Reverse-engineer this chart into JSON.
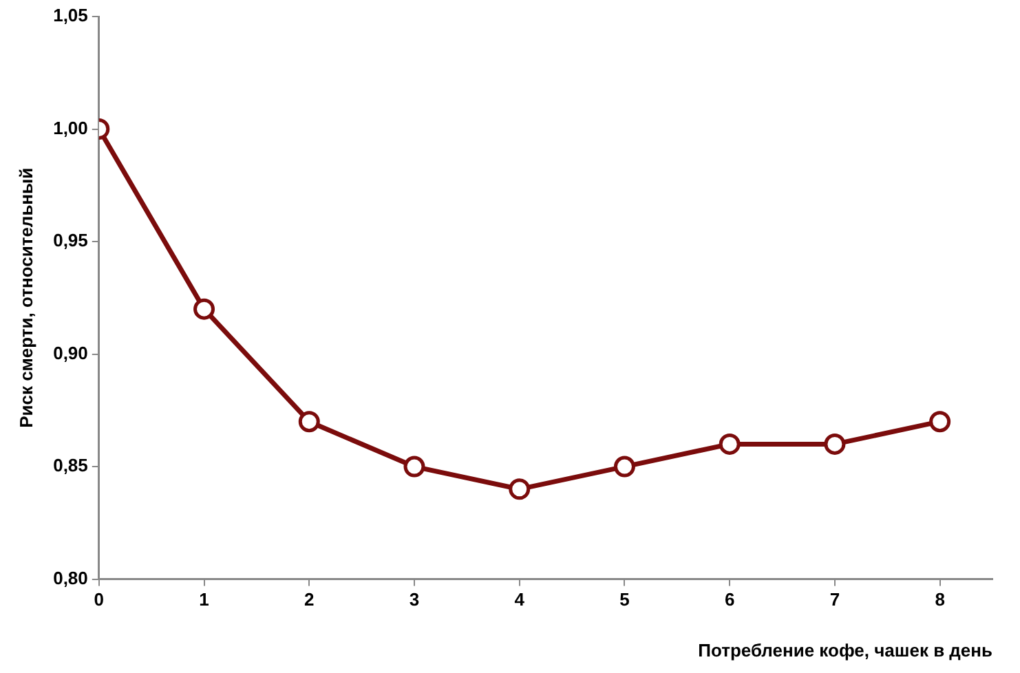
{
  "chart_data": {
    "type": "line",
    "xlabel": "Потребление кофе, чашек в день",
    "ylabel": "Риск смерти, относительный",
    "x": [
      0,
      1,
      2,
      3,
      4,
      5,
      6,
      7,
      8
    ],
    "series": [
      {
        "color": "#7b0c0c",
        "values": [
          1.0,
          0.92,
          0.87,
          0.85,
          0.84,
          0.85,
          0.86,
          0.86,
          0.87
        ]
      }
    ],
    "xlim": [
      0,
      8.5
    ],
    "xticks": [
      0,
      1,
      2,
      3,
      4,
      5,
      6,
      7,
      8
    ],
    "ylim": [
      0.8,
      1.05
    ],
    "yticks": [
      {
        "value": 0.8,
        "label": "0,80"
      },
      {
        "value": 0.85,
        "label": "0,85"
      },
      {
        "value": 0.9,
        "label": "0,90"
      },
      {
        "value": 0.95,
        "label": "0,95"
      },
      {
        "value": 1.0,
        "label": "1,00"
      },
      {
        "value": 1.05,
        "label": "1,05"
      }
    ],
    "grid": false,
    "legend": false,
    "marker": "circle",
    "line_style": "solid"
  }
}
